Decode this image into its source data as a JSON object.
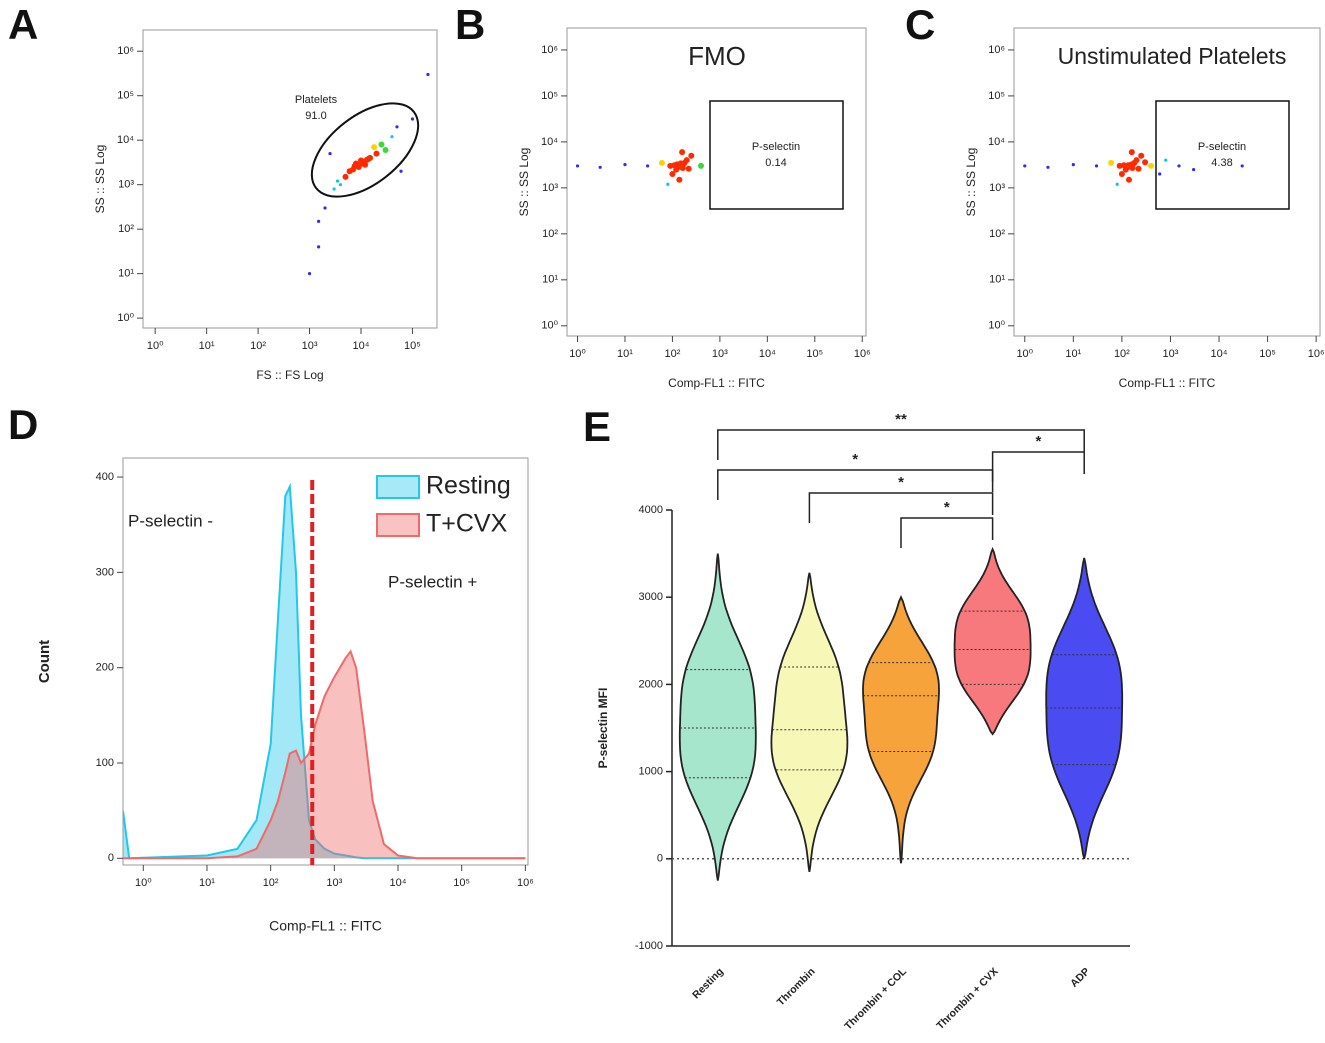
{
  "chart_data": [
    {
      "type": "scatter",
      "panel": "A",
      "xlabel": "FS :: FS Log",
      "ylabel": "SS :: SS Log",
      "log_x": true,
      "log_y": true,
      "color": "#2b2bff",
      "xlim": [
        0.58,
        300000
      ],
      "ylim": [
        0.6,
        3000000
      ],
      "xticks": [
        {
          "value": 1,
          "label": "10⁰"
        },
        {
          "value": 10,
          "label": "10¹"
        },
        {
          "value": 100,
          "label": "10²"
        },
        {
          "value": 1000,
          "label": "10³"
        },
        {
          "value": 10000,
          "label": "10⁴"
        },
        {
          "value": 100000,
          "label": "10⁵"
        }
      ],
      "yticks": [
        {
          "value": 1,
          "label": "10⁰"
        },
        {
          "value": 10,
          "label": "10¹"
        },
        {
          "value": 100,
          "label": "10²"
        },
        {
          "value": 1000,
          "label": "10³"
        },
        {
          "value": 10000,
          "label": "10⁴"
        },
        {
          "value": 100000,
          "label": "10⁵"
        },
        {
          "value": 1000000,
          "label": "10⁶"
        }
      ],
      "x": [
        8000,
        10000,
        12000,
        9000,
        15000,
        6000,
        20000,
        5000,
        11000,
        13000,
        7000,
        25000,
        3000,
        2000,
        1500,
        4000,
        30000,
        40000,
        50000,
        2500,
        1500,
        1000,
        60000,
        100000,
        200000,
        9500,
        10500,
        8500,
        3500,
        18000,
        9800,
        11500,
        7500,
        14000,
        10200
      ],
      "y": [
        3000,
        3500,
        2800,
        2500,
        4000,
        2000,
        5000,
        1500,
        3200,
        3600,
        2200,
        8000,
        800,
        300,
        150,
        1000,
        6000,
        12000,
        20000,
        5000,
        40,
        10,
        2000,
        30000,
        300000,
        2900,
        3100,
        2700,
        1200,
        7000,
        3050,
        3300,
        2600,
        3800,
        2950
      ],
      "gate": {
        "name": "Platelets",
        "value": 91,
        "value_label": "91.0"
      }
    },
    {
      "type": "scatter",
      "panel": "B",
      "title": "FMO",
      "xlabel": "Comp-FL1 :: FITC",
      "ylabel": "SS :: SS Log",
      "log_x": true,
      "log_y": true,
      "color": "#2b2bff",
      "xlim": [
        0.6,
        1200000
      ],
      "ylim": [
        0.6,
        3000000
      ],
      "xticks": [
        {
          "value": 1,
          "label": "10⁰"
        },
        {
          "value": 10,
          "label": "10¹"
        },
        {
          "value": 100,
          "label": "10²"
        },
        {
          "value": 1000,
          "label": "10³"
        },
        {
          "value": 10000,
          "label": "10⁴"
        },
        {
          "value": 100000,
          "label": "10⁵"
        },
        {
          "value": 1000000,
          "label": "10⁶"
        }
      ],
      "yticks": [
        {
          "value": 1,
          "label": "10⁰"
        },
        {
          "value": 10,
          "label": "10¹"
        },
        {
          "value": 100,
          "label": "10²"
        },
        {
          "value": 1000,
          "label": "10³"
        },
        {
          "value": 10000,
          "label": "10⁴"
        },
        {
          "value": 100000,
          "label": "10⁵"
        },
        {
          "value": 1000000,
          "label": "10⁶"
        }
      ],
      "x": [
        150,
        130,
        170,
        120,
        180,
        100,
        200,
        90,
        220,
        60,
        30,
        10,
        3,
        250,
        140,
        160,
        80,
        110,
        145,
        155,
        400,
        1,
        135,
        165,
        150,
        125
      ],
      "y": [
        3000,
        2800,
        3300,
        2500,
        3500,
        2000,
        4000,
        3000,
        2600,
        3500,
        3000,
        3200,
        2800,
        5000,
        1500,
        6000,
        1200,
        3100,
        2900,
        3200,
        3000,
        3000,
        3100,
        2700,
        3400,
        3250
      ],
      "gate": {
        "name": "P-selectin",
        "value": 0.14
      }
    },
    {
      "type": "scatter",
      "panel": "C",
      "title": "Unstimulated Platelets",
      "xlabel": "Comp-FL1 :: FITC",
      "ylabel": "SS :: SS Log",
      "log_x": true,
      "log_y": true,
      "color": "#2b2bff",
      "xlim": [
        0.6,
        1200000
      ],
      "ylim": [
        0.6,
        3000000
      ],
      "xticks": [
        {
          "value": 1,
          "label": "10⁰"
        },
        {
          "value": 10,
          "label": "10¹"
        },
        {
          "value": 100,
          "label": "10²"
        },
        {
          "value": 1000,
          "label": "10³"
        },
        {
          "value": 10000,
          "label": "10⁴"
        },
        {
          "value": 100000,
          "label": "10⁵"
        },
        {
          "value": 1000000,
          "label": "10⁶"
        }
      ],
      "yticks": [
        {
          "value": 1,
          "label": "10⁰"
        },
        {
          "value": 10,
          "label": "10¹"
        },
        {
          "value": 100,
          "label": "10²"
        },
        {
          "value": 1000,
          "label": "10³"
        },
        {
          "value": 10000,
          "label": "10⁴"
        },
        {
          "value": 100000,
          "label": "10⁵"
        },
        {
          "value": 1000000,
          "label": "10⁶"
        }
      ],
      "x": [
        150,
        130,
        170,
        120,
        180,
        100,
        200,
        90,
        220,
        60,
        30,
        10,
        3,
        250,
        140,
        160,
        80,
        110,
        145,
        155,
        400,
        1,
        1500,
        800,
        3000,
        30000,
        600,
        135,
        165,
        300
      ],
      "y": [
        3000,
        2800,
        3300,
        2500,
        3500,
        2000,
        4000,
        3000,
        2600,
        3500,
        3000,
        3200,
        2800,
        5000,
        1500,
        6000,
        1200,
        3100,
        2900,
        3200,
        3000,
        3000,
        3000,
        4000,
        2500,
        3000,
        2000,
        3100,
        2700,
        3600
      ],
      "gate": {
        "name": "P-selectin",
        "value": 4.38
      }
    },
    {
      "type": "area",
      "panel": "D",
      "xlabel": "Comp-FL1 :: FITC",
      "ylabel": "Count",
      "log_x": true,
      "xlim": [
        0.48,
        1100000
      ],
      "ylim": [
        -7,
        420
      ],
      "xticks": [
        {
          "value": 1,
          "label": "10⁰"
        },
        {
          "value": 10,
          "label": "10¹"
        },
        {
          "value": 100,
          "label": "10²"
        },
        {
          "value": 1000,
          "label": "10³"
        },
        {
          "value": 10000,
          "label": "10⁴"
        },
        {
          "value": 100000,
          "label": "10⁵"
        },
        {
          "value": 1000000,
          "label": "10⁶"
        }
      ],
      "yticks": [
        0,
        100,
        200,
        300,
        400
      ],
      "x": [
        0.48,
        0.6,
        10,
        30,
        60,
        100,
        130,
        170,
        200,
        250,
        300,
        400,
        500,
        700,
        1000,
        1500,
        1800,
        2200,
        3000,
        4000,
        6000,
        10000,
        20000,
        1000000
      ],
      "series": [
        {
          "name": "Resting",
          "color": "#22c8ea",
          "values": [
            50,
            0,
            3,
            10,
            40,
            120,
            250,
            380,
            390,
            300,
            150,
            40,
            20,
            10,
            5,
            3,
            2,
            1,
            0,
            0,
            0,
            0,
            0,
            0
          ]
        },
        {
          "name": "T+CVX",
          "color": "#f06a6a",
          "values": [
            0,
            0,
            0,
            2,
            10,
            40,
            60,
            90,
            110,
            113,
            100,
            110,
            140,
            170,
            190,
            210,
            217,
            200,
            130,
            60,
            15,
            3,
            0,
            0
          ]
        }
      ],
      "threshold": 450,
      "threshold_color": "#e02020",
      "annotations": [
        "P-selectin -",
        "P-selectin +"
      ]
    },
    {
      "type": "violin",
      "panel": "E",
      "ylabel": "P-selectin MFI",
      "ylim": [
        -1000,
        4000
      ],
      "yticks": [
        -1000,
        0,
        1000,
        2000,
        3000,
        4000
      ],
      "categories": [
        "Resting",
        "Thrombin",
        "Thrombin + COL",
        "Thrombin + CVX",
        "ADP"
      ],
      "colors": [
        "#a6e6cc",
        "#f7f8b8",
        "#f7a33c",
        "#f8797d",
        "#4b4bf2"
      ],
      "stats": [
        {
          "min": -250,
          "q1": 930,
          "median": 1500,
          "q3": 2170,
          "max": 3500
        },
        {
          "min": -150,
          "q1": 1020,
          "median": 1480,
          "q3": 2200,
          "max": 3280
        },
        {
          "min": -50,
          "q1": 1230,
          "median": 1870,
          "q3": 2250,
          "max": 3000
        },
        {
          "min": 1430,
          "q1": 2000,
          "median": 2400,
          "q3": 2840,
          "max": 3550
        },
        {
          "min": 0,
          "q1": 1080,
          "median": 1730,
          "q3": 2340,
          "max": 3450
        }
      ],
      "comparisons": [
        {
          "pair": [
            0,
            4
          ],
          "label": "**"
        },
        {
          "pair": [
            3,
            4
          ],
          "label": "*"
        },
        {
          "pair": [
            0,
            3
          ],
          "label": "*"
        },
        {
          "pair": [
            1,
            3
          ],
          "label": "*"
        },
        {
          "pair": [
            2,
            3
          ],
          "label": "*"
        }
      ]
    }
  ]
}
